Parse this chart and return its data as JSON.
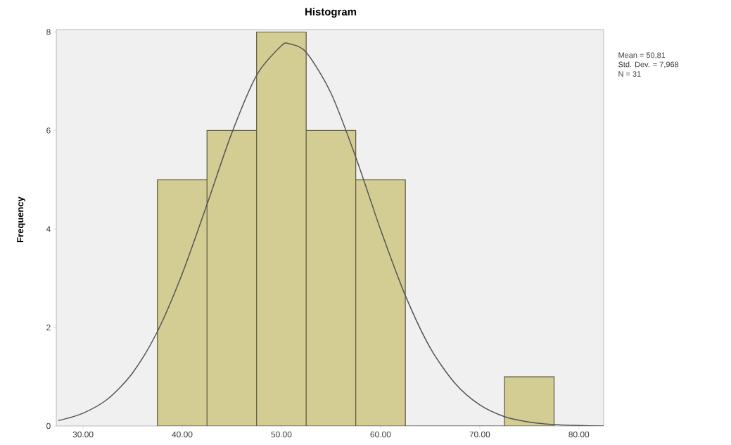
{
  "chart_data": {
    "type": "histogram",
    "title": "Histogram",
    "ylabel": "Frequency",
    "bins": [
      37.5,
      42.5,
      47.5,
      52.5,
      57.5,
      62.5,
      67.5,
      72.5,
      77.5
    ],
    "values": [
      5,
      6,
      8,
      6,
      5,
      0,
      0,
      1
    ],
    "color": "#d3cd93",
    "series": [
      {
        "type": "line",
        "color": "#555555",
        "x": [
          27.5,
          30,
          32.5,
          35,
          37.5,
          40,
          42.5,
          45,
          47.5,
          50,
          50.81,
          52.5,
          55,
          57.5,
          60,
          62.5,
          65,
          67.5,
          70,
          72.5,
          75,
          77.5,
          80,
          82.5
        ],
        "values": [
          0.11,
          0.26,
          0.55,
          1.08,
          1.92,
          3.09,
          4.5,
          5.95,
          7.12,
          7.72,
          7.76,
          7.59,
          6.76,
          5.46,
          3.99,
          2.65,
          1.59,
          0.87,
          0.43,
          0.19,
          0.08,
          0.03,
          0.01,
          0.0
        ]
      }
    ],
    "xlim": [
      27.3,
      82.5
    ],
    "ylim": [
      0,
      8.05
    ],
    "xticks": [
      {
        "value": 30,
        "label": "30.00"
      },
      {
        "value": 40,
        "label": "40.00"
      },
      {
        "value": 50,
        "label": "50.00"
      },
      {
        "value": 60,
        "label": "60.00"
      },
      {
        "value": 70,
        "label": "70.00"
      },
      {
        "value": 80,
        "label": "80.00"
      }
    ],
    "yticks": [
      0,
      2,
      4,
      6,
      8
    ],
    "annotations": [
      "Mean = 50,81",
      "Std. Dev. = 7,968",
      "N = 31"
    ]
  }
}
